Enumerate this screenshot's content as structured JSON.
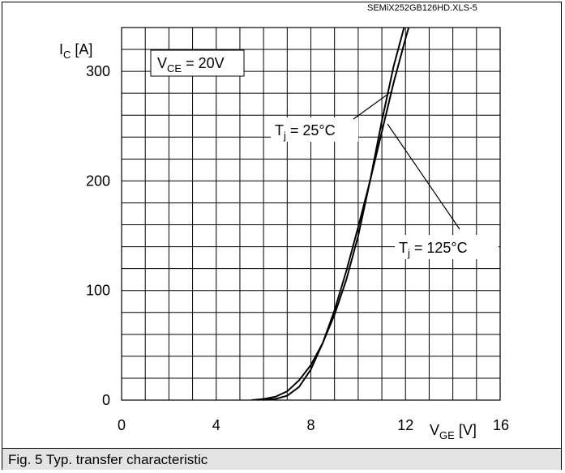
{
  "doc_id": "SEMiX252GB126HD.XLS-5",
  "caption": "Fig. 5 Typ. transfer characteristic",
  "chart_data": {
    "type": "line",
    "ylabel": {
      "main": "I",
      "sub": "C",
      "unit": "[A]"
    },
    "xlabel": {
      "main": "V",
      "sub": "GE",
      "unit": "[V]"
    },
    "xlim": [
      0,
      16
    ],
    "ylim": [
      0,
      340
    ],
    "x_ticks": [
      0,
      4,
      8,
      12,
      16
    ],
    "y_ticks": [
      0,
      100,
      200,
      300
    ],
    "grid": true,
    "condition": {
      "main": "V",
      "sub": "CE",
      "rest": " = 20V"
    },
    "series": [
      {
        "label": {
          "main": "T",
          "sub": "j",
          "rest": " = 25°C"
        },
        "points": [
          [
            5.5,
            0
          ],
          [
            6,
            1
          ],
          [
            6.5,
            3
          ],
          [
            7,
            8
          ],
          [
            7.5,
            18
          ],
          [
            8,
            32
          ],
          [
            8.5,
            52
          ],
          [
            9,
            78
          ],
          [
            9.5,
            110
          ],
          [
            10,
            150
          ],
          [
            10.5,
            200
          ],
          [
            11,
            255
          ],
          [
            11.5,
            305
          ],
          [
            12,
            345
          ]
        ]
      },
      {
        "label": {
          "main": "T",
          "sub": "j",
          "rest": " = 125°C"
        },
        "points": [
          [
            5.8,
            0
          ],
          [
            6.5,
            1
          ],
          [
            7,
            4
          ],
          [
            7.5,
            12
          ],
          [
            8,
            28
          ],
          [
            8.5,
            52
          ],
          [
            9,
            82
          ],
          [
            9.5,
            118
          ],
          [
            10,
            158
          ],
          [
            10.5,
            200
          ],
          [
            11,
            245
          ],
          [
            11.5,
            290
          ],
          [
            12,
            330
          ],
          [
            12.2,
            345
          ]
        ]
      }
    ]
  }
}
